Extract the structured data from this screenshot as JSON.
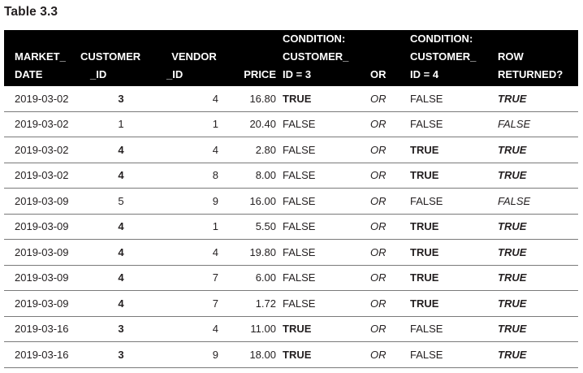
{
  "caption": "Table 3.3",
  "headers": [
    [
      "MARKET_",
      "DATE"
    ],
    [
      "CUSTOMER",
      "_ID"
    ],
    [
      "VENDOR",
      "_ID"
    ],
    [
      "PRICE"
    ],
    [
      "CONDITION:",
      "CUSTOMER_",
      "ID = 3"
    ],
    [
      "OR"
    ],
    [
      "CONDITION:",
      "CUSTOMER_",
      "ID = 4"
    ],
    [
      "ROW",
      "RETURNED?"
    ]
  ],
  "rows": [
    [
      "2019-03-02",
      "3",
      "4",
      "16.80",
      "TRUE",
      "OR",
      "FALSE",
      "TRUE"
    ],
    [
      "2019-03-02",
      "1",
      "1",
      "20.40",
      "FALSE",
      "OR",
      "FALSE",
      "FALSE"
    ],
    [
      "2019-03-02",
      "4",
      "4",
      "2.80",
      "FALSE",
      "OR",
      "TRUE",
      "TRUE"
    ],
    [
      "2019-03-02",
      "4",
      "8",
      "8.00",
      "FALSE",
      "OR",
      "TRUE",
      "TRUE"
    ],
    [
      "2019-03-09",
      "5",
      "9",
      "16.00",
      "FALSE",
      "OR",
      "FALSE",
      "FALSE"
    ],
    [
      "2019-03-09",
      "4",
      "1",
      "5.50",
      "FALSE",
      "OR",
      "TRUE",
      "TRUE"
    ],
    [
      "2019-03-09",
      "4",
      "4",
      "19.80",
      "FALSE",
      "OR",
      "TRUE",
      "TRUE"
    ],
    [
      "2019-03-09",
      "4",
      "7",
      "6.00",
      "FALSE",
      "OR",
      "TRUE",
      "TRUE"
    ],
    [
      "2019-03-09",
      "4",
      "7",
      "1.72",
      "FALSE",
      "OR",
      "TRUE",
      "TRUE"
    ],
    [
      "2019-03-16",
      "3",
      "4",
      "11.00",
      "TRUE",
      "OR",
      "FALSE",
      "TRUE"
    ],
    [
      "2019-03-16",
      "3",
      "9",
      "18.00",
      "TRUE",
      "OR",
      "FALSE",
      "TRUE"
    ]
  ]
}
